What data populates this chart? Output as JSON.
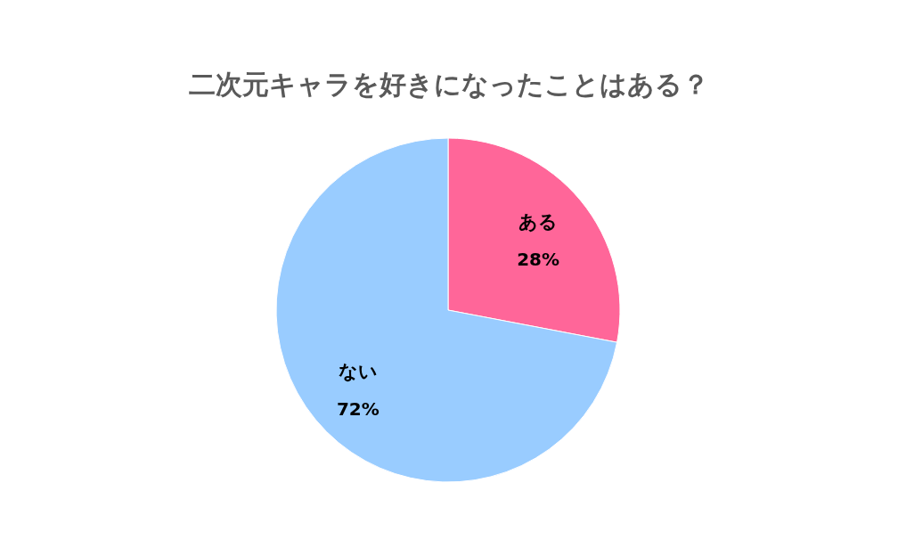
{
  "chart_data": {
    "type": "pie",
    "title": "二次元キャラを好きになったことはある？",
    "categories": [
      "ある",
      "ない"
    ],
    "values": [
      28,
      72
    ],
    "colors": [
      "#ff6699",
      "#99ccff"
    ],
    "value_labels": [
      "28%",
      "72%"
    ]
  }
}
